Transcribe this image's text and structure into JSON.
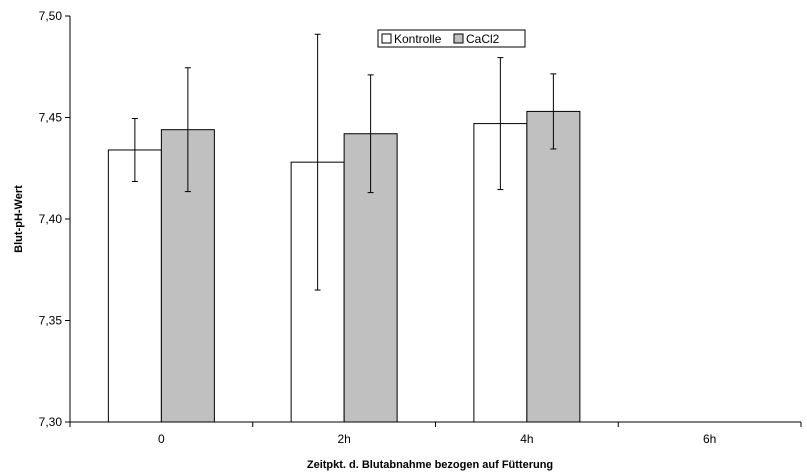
{
  "chart_data": {
    "type": "bar",
    "title": "",
    "xlabel": "Zeitpkt. d. Blutabnahme bezogen auf Fütterung",
    "ylabel": "Blut-pH-Wert",
    "ylim": [
      7.3,
      7.5
    ],
    "yticks": [
      "7,30",
      "7,35",
      "7,40",
      "7,45",
      "7,50"
    ],
    "categories": [
      "0",
      "2h",
      "4h",
      "6h"
    ],
    "legend_position": "top-center",
    "grid": false,
    "series": [
      {
        "name": "Kontrolle",
        "color": "#ffffff",
        "values": [
          7.434,
          7.428,
          7.447,
          null
        ],
        "errors": [
          0.0155,
          0.063,
          0.0325,
          null
        ]
      },
      {
        "name": "CaCl2",
        "color": "#c0c0c0",
        "values": [
          7.444,
          7.442,
          7.453,
          null
        ],
        "errors": [
          0.0305,
          0.029,
          0.0185,
          null
        ]
      }
    ]
  }
}
